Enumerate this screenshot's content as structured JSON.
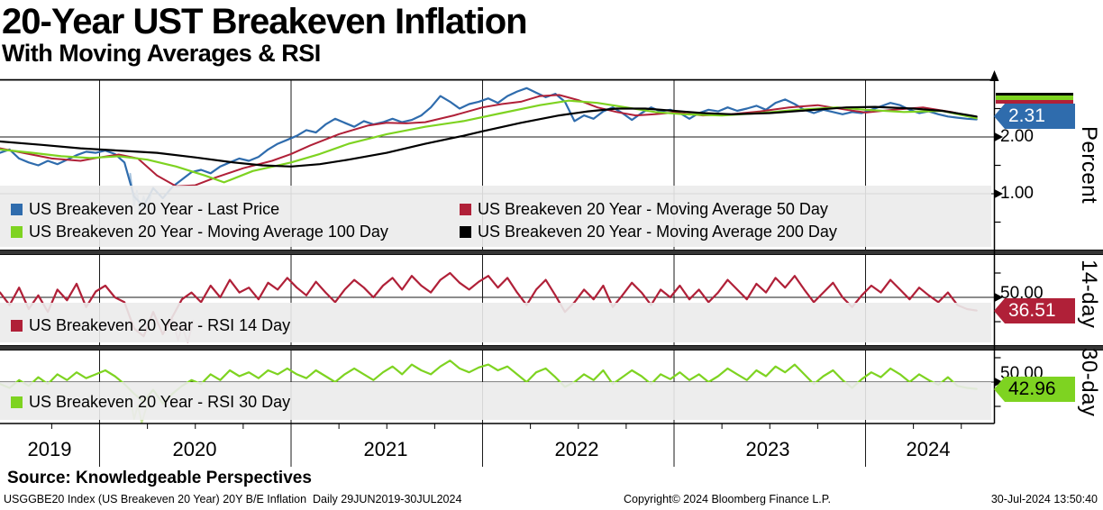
{
  "header": {
    "title": "20-Year UST Breakeven Inflation",
    "subtitle": "With Moving Averages & RSI"
  },
  "colors": {
    "blue": "#2f6cad",
    "light_blue": "#a3c1dd",
    "red": "#b02038",
    "light_red": "#dca6b2",
    "green": "#7ed321",
    "light_green": "#c8e69b",
    "black": "#000000",
    "grid": "#1a1a1a",
    "legend_bg": "#ebebeb",
    "separator": "#353535",
    "tag_text_light": "#ffffff",
    "tag_text_dark": "#000000"
  },
  "x_axis": {
    "labels": [
      "2019",
      "2020",
      "2021",
      "2022",
      "2023",
      "2024"
    ]
  },
  "footer": {
    "source": "Source: Knowledgeable Perspectives",
    "security_info": "USGGBE20 Index (US Breakeven 20 Year) 20Y B/E Inflation  Daily 29JUN2019-30JUL2024",
    "copyright": "Copyright© 2024 Bloomberg Finance L.P.",
    "timestamp": "30-Jul-2024 13:50:40"
  },
  "chart_data": [
    {
      "type": "line",
      "ylabel": "Percent",
      "ylim": [
        0,
        3.02
      ],
      "grid_values": [
        3,
        2,
        1
      ],
      "y_ticks": [
        {
          "value": 2,
          "label": "2.00"
        },
        {
          "value": 1,
          "label": "1.00"
        }
      ],
      "minor_ticks": [
        2.5,
        1.5,
        0.5
      ],
      "last_tag": {
        "label": "2.31",
        "value": 2.31
      },
      "series": [
        {
          "name": "last_price",
          "label": "US Breakeven 20 Year - Last Price",
          "color": "#2f6cad",
          "width": 2.2,
          "start": 2019.48,
          "step": 0.05,
          "values": [
            1.72,
            1.78,
            1.62,
            1.55,
            1.5,
            1.58,
            1.52,
            1.6,
            1.68,
            1.74,
            1.72,
            1.76,
            1.7,
            1.55,
            0.95,
            0.78,
            1.1,
            0.92,
            1.12,
            1.25,
            1.38,
            1.42,
            1.36,
            1.48,
            1.55,
            1.62,
            1.58,
            1.65,
            1.78,
            1.88,
            1.95,
            2.02,
            2.12,
            2.08,
            2.22,
            2.32,
            2.25,
            2.18,
            2.28,
            2.22,
            2.26,
            2.32,
            2.26,
            2.3,
            2.38,
            2.52,
            2.72,
            2.62,
            2.5,
            2.58,
            2.62,
            2.68,
            2.6,
            2.72,
            2.8,
            2.86,
            2.78,
            2.7,
            2.76,
            2.62,
            2.28,
            2.38,
            2.32,
            2.45,
            2.52,
            2.42,
            2.3,
            2.42,
            2.52,
            2.45,
            2.48,
            2.42,
            2.32,
            2.42,
            2.48,
            2.45,
            2.52,
            2.46,
            2.5,
            2.55,
            2.48,
            2.6,
            2.66,
            2.58,
            2.48,
            2.42,
            2.48,
            2.44,
            2.4,
            2.44,
            2.42,
            2.48,
            2.54,
            2.6,
            2.56,
            2.48,
            2.42,
            2.45,
            2.4,
            2.36,
            2.34,
            2.32,
            2.31
          ]
        },
        {
          "name": "ma50",
          "label": "US Breakeven 20 Year - Moving Average 50 Day",
          "color": "#b02038",
          "width": 2,
          "points": [
            [
              2019.48,
              1.8
            ],
            [
              2019.6,
              1.72
            ],
            [
              2019.75,
              1.62
            ],
            [
              2019.9,
              1.58
            ],
            [
              2020.0,
              1.64
            ],
            [
              2020.1,
              1.69
            ],
            [
              2020.2,
              1.62
            ],
            [
              2020.3,
              1.32
            ],
            [
              2020.4,
              1.13
            ],
            [
              2020.5,
              1.15
            ],
            [
              2020.6,
              1.28
            ],
            [
              2020.75,
              1.45
            ],
            [
              2020.9,
              1.58
            ],
            [
              2021.0,
              1.7
            ],
            [
              2021.1,
              1.85
            ],
            [
              2021.25,
              2.05
            ],
            [
              2021.4,
              2.2
            ],
            [
              2021.5,
              2.25
            ],
            [
              2021.6,
              2.24
            ],
            [
              2021.7,
              2.26
            ],
            [
              2021.85,
              2.38
            ],
            [
              2022.0,
              2.52
            ],
            [
              2022.1,
              2.58
            ],
            [
              2022.2,
              2.62
            ],
            [
              2022.3,
              2.72
            ],
            [
              2022.4,
              2.74
            ],
            [
              2022.5,
              2.65
            ],
            [
              2022.6,
              2.52
            ],
            [
              2022.7,
              2.44
            ],
            [
              2022.8,
              2.38
            ],
            [
              2022.9,
              2.4
            ],
            [
              2023.0,
              2.43
            ],
            [
              2023.15,
              2.38
            ],
            [
              2023.3,
              2.4
            ],
            [
              2023.45,
              2.45
            ],
            [
              2023.6,
              2.52
            ],
            [
              2023.75,
              2.56
            ],
            [
              2023.9,
              2.48
            ],
            [
              2024.0,
              2.43
            ],
            [
              2024.15,
              2.48
            ],
            [
              2024.3,
              2.52
            ],
            [
              2024.45,
              2.44
            ],
            [
              2024.58,
              2.34
            ]
          ]
        },
        {
          "name": "ma100",
          "label": "US Breakeven 20 Year - Moving Average 100 Day",
          "color": "#7ed321",
          "width": 2.2,
          "points": [
            [
              2019.48,
              1.78
            ],
            [
              2019.65,
              1.72
            ],
            [
              2019.8,
              1.66
            ],
            [
              2019.95,
              1.63
            ],
            [
              2020.1,
              1.66
            ],
            [
              2020.25,
              1.6
            ],
            [
              2020.4,
              1.48
            ],
            [
              2020.55,
              1.32
            ],
            [
              2020.65,
              1.2
            ],
            [
              2020.8,
              1.4
            ],
            [
              2021.0,
              1.55
            ],
            [
              2021.15,
              1.7
            ],
            [
              2021.3,
              1.88
            ],
            [
              2021.5,
              2.05
            ],
            [
              2021.7,
              2.18
            ],
            [
              2021.9,
              2.28
            ],
            [
              2022.1,
              2.42
            ],
            [
              2022.3,
              2.56
            ],
            [
              2022.45,
              2.64
            ],
            [
              2022.6,
              2.6
            ],
            [
              2022.75,
              2.52
            ],
            [
              2022.9,
              2.44
            ],
            [
              2023.05,
              2.4
            ],
            [
              2023.25,
              2.38
            ],
            [
              2023.45,
              2.42
            ],
            [
              2023.65,
              2.48
            ],
            [
              2023.85,
              2.52
            ],
            [
              2024.0,
              2.48
            ],
            [
              2024.2,
              2.44
            ],
            [
              2024.4,
              2.46
            ],
            [
              2024.58,
              2.33
            ]
          ]
        },
        {
          "name": "ma200",
          "label": "US Breakeven 20 Year - Moving Average 200 Day",
          "color": "#000000",
          "width": 2.2,
          "points": [
            [
              2019.48,
              1.92
            ],
            [
              2019.7,
              1.86
            ],
            [
              2019.9,
              1.8
            ],
            [
              2020.1,
              1.76
            ],
            [
              2020.3,
              1.72
            ],
            [
              2020.5,
              1.64
            ],
            [
              2020.7,
              1.55
            ],
            [
              2020.85,
              1.5
            ],
            [
              2021.0,
              1.48
            ],
            [
              2021.15,
              1.52
            ],
            [
              2021.3,
              1.6
            ],
            [
              2021.5,
              1.72
            ],
            [
              2021.7,
              1.88
            ],
            [
              2021.9,
              2.02
            ],
            [
              2022.0,
              2.1
            ],
            [
              2022.2,
              2.25
            ],
            [
              2022.4,
              2.38
            ],
            [
              2022.55,
              2.45
            ],
            [
              2022.7,
              2.5
            ],
            [
              2022.85,
              2.5
            ],
            [
              2023.0,
              2.46
            ],
            [
              2023.15,
              2.42
            ],
            [
              2023.3,
              2.4
            ],
            [
              2023.5,
              2.42
            ],
            [
              2023.7,
              2.47
            ],
            [
              2023.9,
              2.52
            ],
            [
              2024.05,
              2.53
            ],
            [
              2024.25,
              2.5
            ],
            [
              2024.4,
              2.46
            ],
            [
              2024.58,
              2.36
            ]
          ]
        },
        {
          "name": "fast_move_shadow",
          "color": "#a3c1dd",
          "width": 2,
          "under": true,
          "points": [
            [
              2020.16,
              1.35
            ],
            [
              2020.18,
              0.8
            ],
            [
              2020.195,
              1.05
            ],
            [
              2020.21,
              0.68
            ],
            [
              2020.23,
              0.95
            ],
            [
              2020.25,
              0.72
            ],
            [
              2020.27,
              1.02
            ]
          ]
        }
      ]
    },
    {
      "type": "line",
      "ylabel": "14-day",
      "ylim": [
        0,
        100
      ],
      "grid_values": [
        50
      ],
      "y_ticks": [
        {
          "value": 50,
          "label": "50.00"
        }
      ],
      "minor_ticks": [
        75,
        25
      ],
      "last_tag": {
        "label": "36.51",
        "value": 36.51
      },
      "series": [
        {
          "name": "rsi14",
          "label": "US Breakeven 20 Year - RSI 14 Day",
          "color": "#b02038",
          "width": 2.2,
          "start": 2019.48,
          "step": 0.05,
          "values": [
            55,
            42,
            60,
            38,
            52,
            35,
            58,
            47,
            64,
            40,
            56,
            62,
            50,
            45,
            18,
            10,
            35,
            12,
            30,
            48,
            55,
            45,
            62,
            50,
            68,
            55,
            60,
            48,
            65,
            58,
            70,
            60,
            52,
            66,
            55,
            45,
            58,
            68,
            60,
            50,
            62,
            70,
            58,
            72,
            62,
            55,
            68,
            75,
            65,
            58,
            66,
            72,
            60,
            70,
            55,
            42,
            58,
            68,
            52,
            35,
            45,
            58,
            48,
            62,
            40,
            52,
            65,
            55,
            42,
            58,
            50,
            62,
            48,
            58,
            45,
            55,
            68,
            58,
            48,
            64,
            55,
            70,
            60,
            72,
            58,
            45,
            55,
            65,
            50,
            40,
            52,
            62,
            55,
            68,
            58,
            48,
            60,
            52,
            45,
            55,
            42,
            38,
            36.51
          ]
        },
        {
          "name": "rsi14_shadow",
          "color": "#dca6b2",
          "width": 2,
          "under": true,
          "points": [
            [
              2020.38,
              28
            ],
            [
              2020.41,
              6
            ],
            [
              2020.43,
              20
            ],
            [
              2020.46,
              4
            ],
            [
              2020.49,
              26
            ]
          ]
        }
      ]
    },
    {
      "type": "line",
      "ylabel": "30-day",
      "ylim": [
        0,
        100
      ],
      "grid_values": [
        50
      ],
      "y_ticks": [
        {
          "value": 50,
          "label": "50.00"
        }
      ],
      "minor_ticks": [
        75,
        25
      ],
      "last_tag": {
        "label": "42.96",
        "value": 42.96
      },
      "series": [
        {
          "name": "rsi30",
          "label": "US Breakeven 20 Year - RSI 30 Day",
          "color": "#7ed321",
          "width": 2.2,
          "start": 2019.48,
          "step": 0.05,
          "values": [
            48,
            44,
            52,
            46,
            55,
            48,
            58,
            52,
            60,
            54,
            58,
            62,
            56,
            48,
            38,
            30,
            42,
            28,
            38,
            46,
            52,
            48,
            58,
            52,
            62,
            56,
            60,
            54,
            62,
            58,
            64,
            58,
            54,
            62,
            56,
            50,
            58,
            64,
            58,
            52,
            60,
            66,
            58,
            68,
            62,
            58,
            66,
            72,
            64,
            60,
            65,
            68,
            62,
            66,
            58,
            50,
            60,
            64,
            55,
            45,
            50,
            58,
            52,
            62,
            48,
            55,
            62,
            56,
            48,
            58,
            53,
            60,
            52,
            58,
            50,
            56,
            64,
            58,
            52,
            62,
            56,
            66,
            60,
            68,
            58,
            48,
            56,
            62,
            52,
            44,
            53,
            60,
            55,
            64,
            58,
            50,
            58,
            52,
            47,
            55,
            46,
            44,
            42.96
          ]
        },
        {
          "name": "rsi30_shadow",
          "color": "#c8e69b",
          "width": 2,
          "under": true,
          "points": [
            [
              2020.16,
              34
            ],
            [
              2020.18,
              12
            ],
            [
              2020.2,
              26
            ],
            [
              2020.22,
              8
            ],
            [
              2020.25,
              28
            ]
          ]
        }
      ]
    }
  ]
}
